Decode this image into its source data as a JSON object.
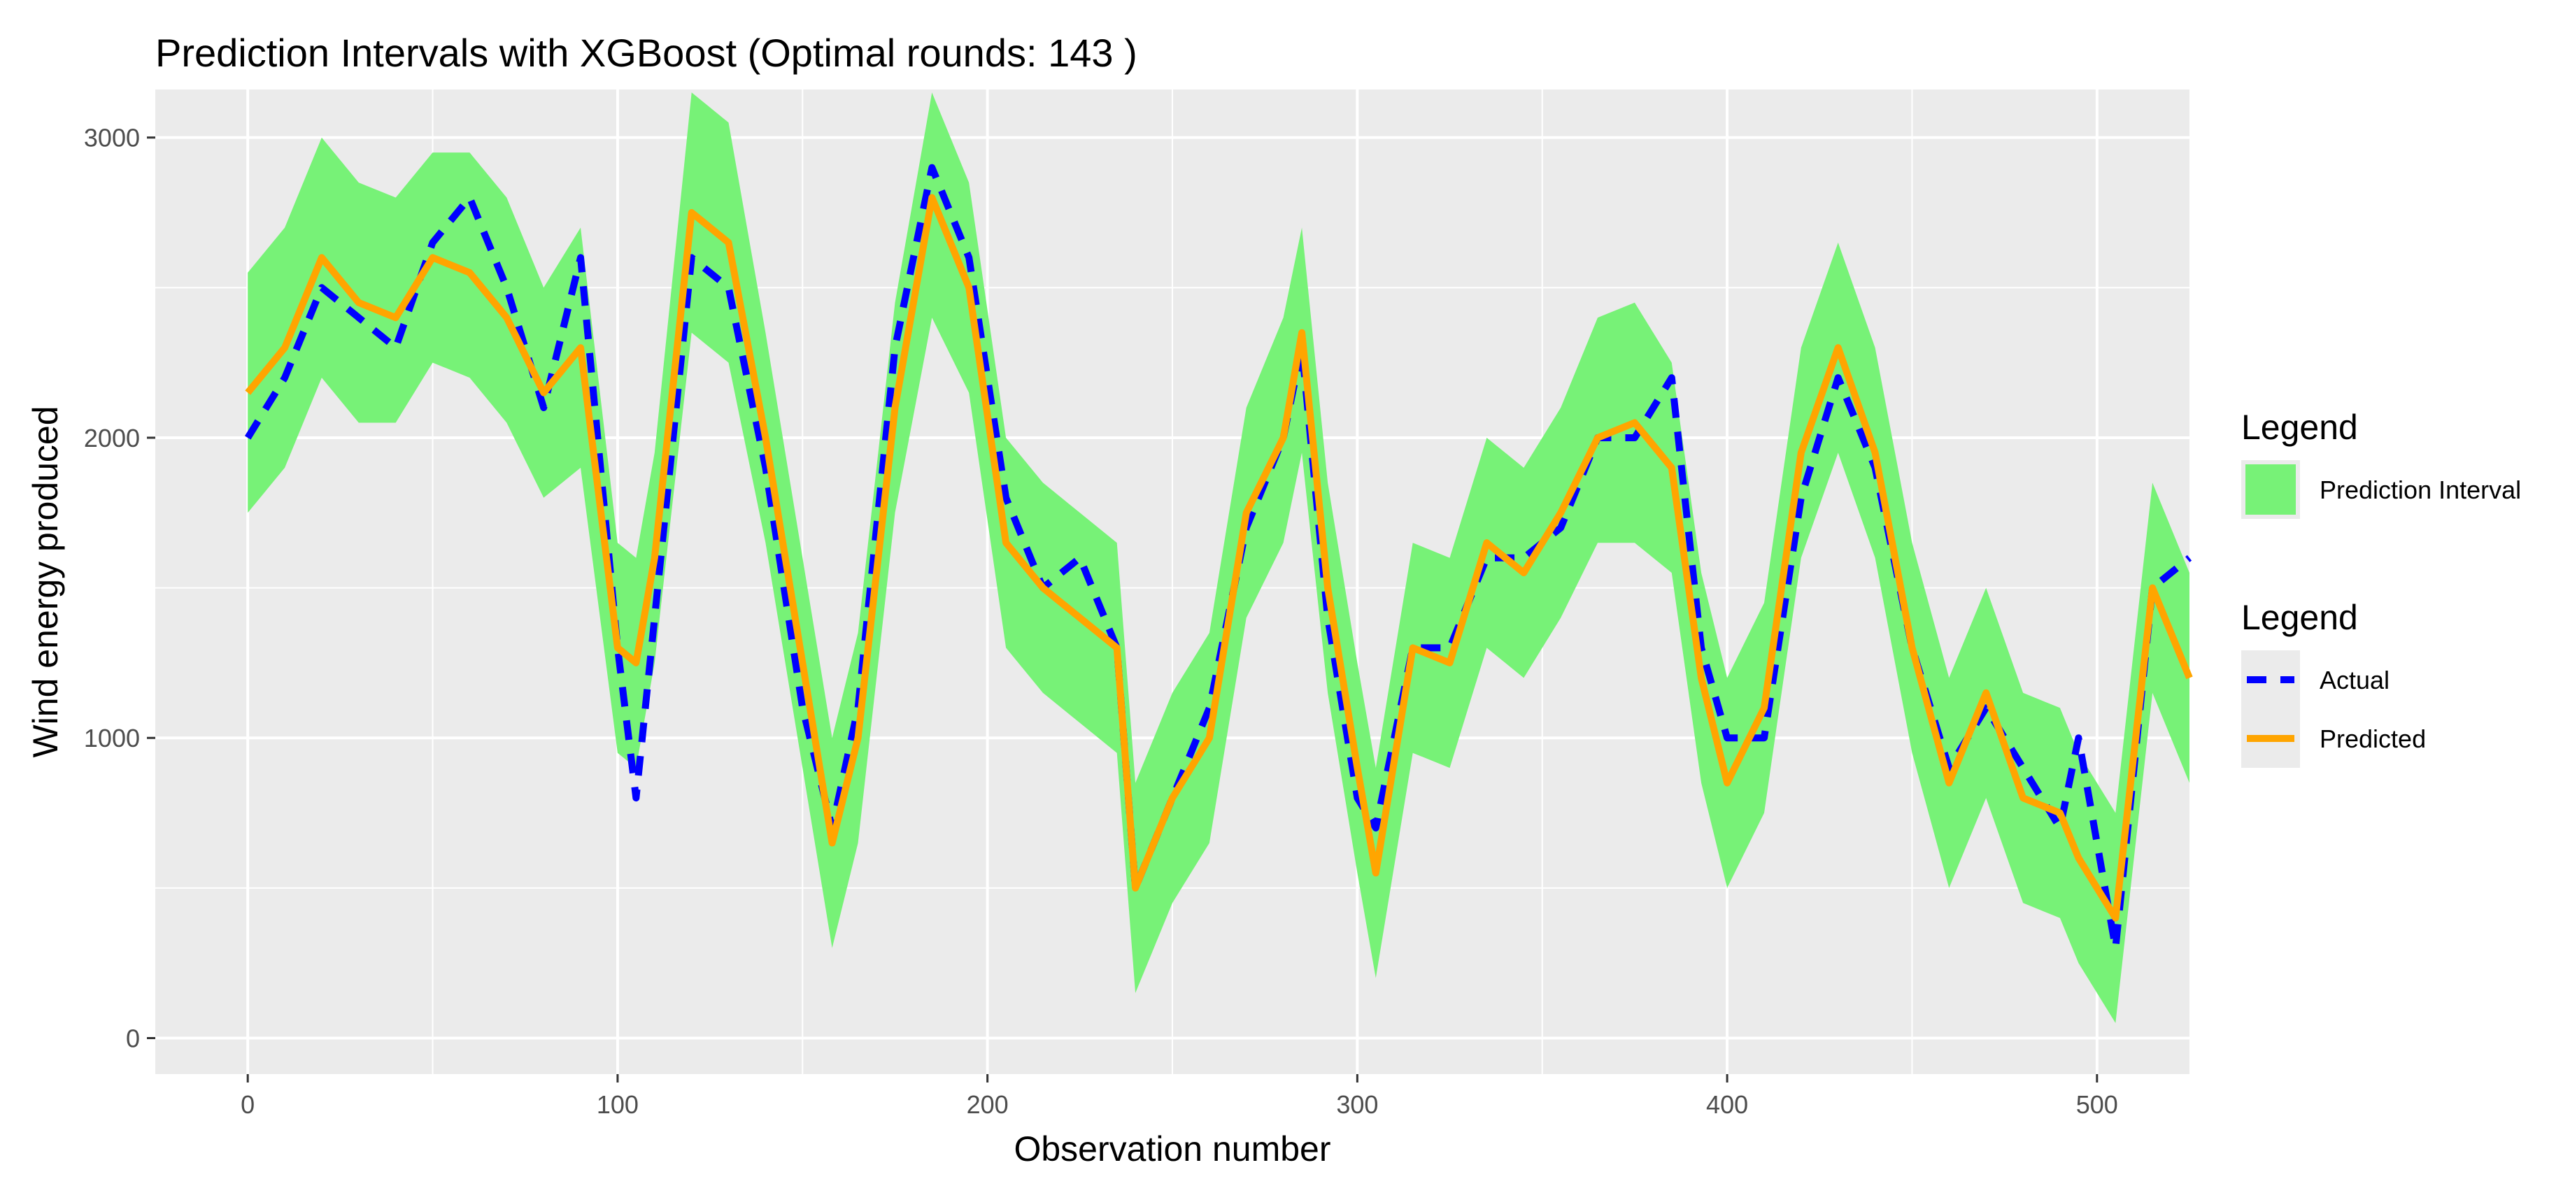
{
  "chart_data": {
    "type": "line",
    "title": "Prediction Intervals with XGBoost (Optimal rounds: 143 )",
    "xlabel": "Observation number",
    "ylabel": "Wind energy produced",
    "xlim": [
      -25,
      525
    ],
    "ylim": [
      -120,
      3160
    ],
    "x_ticks": [
      0,
      100,
      200,
      300,
      400,
      500
    ],
    "y_ticks": [
      0,
      1000,
      2000,
      3000
    ],
    "grid": true,
    "legend_position": "right",
    "legends": [
      {
        "title": "Legend",
        "items": [
          {
            "label": "Prediction Interval",
            "color": "#77f277",
            "kind": "fill"
          }
        ]
      },
      {
        "title": "Legend",
        "items": [
          {
            "label": "Actual",
            "color": "#0000ff",
            "kind": "dashed-line"
          },
          {
            "label": "Predicted",
            "color": "#ffa500",
            "kind": "line"
          }
        ]
      }
    ],
    "colors": {
      "panel": "#ebebeb",
      "grid": "#ffffff",
      "interval": "#77f277",
      "actual": "#0000ff",
      "predicted": "#ffa500"
    },
    "x": [
      0,
      10,
      20,
      30,
      40,
      50,
      60,
      70,
      80,
      90,
      100,
      105,
      110,
      120,
      130,
      140,
      150,
      158,
      165,
      175,
      185,
      195,
      205,
      215,
      225,
      235,
      240,
      250,
      260,
      270,
      280,
      285,
      292,
      300,
      305,
      315,
      325,
      335,
      345,
      355,
      365,
      375,
      385,
      393,
      400,
      410,
      420,
      430,
      440,
      450,
      460,
      470,
      480,
      490,
      495,
      505,
      515,
      525
    ],
    "series": [
      {
        "name": "Actual",
        "values": [
          2000,
          2200,
          2500,
          2400,
          2300,
          2650,
          2800,
          2500,
          2100,
          2600,
          1300,
          800,
          1400,
          2600,
          2500,
          1900,
          1100,
          700,
          1100,
          2300,
          2900,
          2600,
          1800,
          1500,
          1600,
          1300,
          500,
          800,
          1100,
          1700,
          2000,
          2300,
          1400,
          800,
          700,
          1300,
          1300,
          1600,
          1600,
          1700,
          2000,
          2000,
          2200,
          1300,
          1000,
          1000,
          1800,
          2200,
          1900,
          1300,
          900,
          1100,
          900,
          700,
          1000,
          300,
          1500,
          1600
        ]
      },
      {
        "name": "Predicted",
        "values": [
          2150,
          2300,
          2600,
          2450,
          2400,
          2600,
          2550,
          2400,
          2150,
          2300,
          1300,
          1250,
          1600,
          2750,
          2650,
          2000,
          1250,
          650,
          1000,
          2100,
          2800,
          2500,
          1650,
          1500,
          1400,
          1300,
          500,
          800,
          1000,
          1750,
          2000,
          2350,
          1500,
          900,
          550,
          1300,
          1250,
          1650,
          1550,
          1750,
          2000,
          2050,
          1900,
          1200,
          850,
          1100,
          1950,
          2300,
          1950,
          1300,
          850,
          1150,
          800,
          750,
          600,
          400,
          1500,
          1200
        ]
      },
      {
        "name": "Lower",
        "values": [
          1750,
          1900,
          2200,
          2050,
          2050,
          2250,
          2200,
          2050,
          1800,
          1900,
          950,
          900,
          1250,
          2350,
          2250,
          1650,
          900,
          300,
          650,
          1750,
          2400,
          2150,
          1300,
          1150,
          1050,
          950,
          150,
          450,
          650,
          1400,
          1650,
          1950,
          1150,
          550,
          200,
          950,
          900,
          1300,
          1200,
          1400,
          1650,
          1650,
          1550,
          850,
          500,
          750,
          1600,
          1950,
          1600,
          950,
          500,
          800,
          450,
          400,
          250,
          50,
          1150,
          850
        ]
      },
      {
        "name": "Upper",
        "values": [
          2550,
          2700,
          3000,
          2850,
          2800,
          2950,
          2950,
          2800,
          2500,
          2700,
          1650,
          1600,
          1950,
          3150,
          3050,
          2350,
          1600,
          1000,
          1350,
          2450,
          3150,
          2850,
          2000,
          1850,
          1750,
          1650,
          850,
          1150,
          1350,
          2100,
          2400,
          2700,
          1850,
          1250,
          900,
          1650,
          1600,
          2000,
          1900,
          2100,
          2400,
          2450,
          2250,
          1550,
          1200,
          1450,
          2300,
          2650,
          2300,
          1650,
          1200,
          1500,
          1150,
          1100,
          950,
          750,
          1850,
          1550
        ]
      }
    ]
  }
}
